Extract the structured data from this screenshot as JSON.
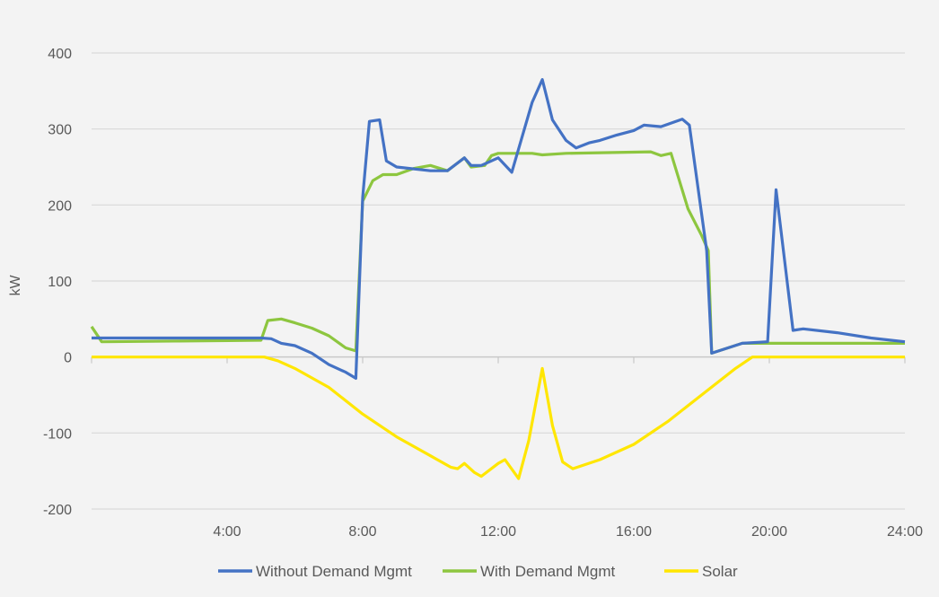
{
  "chart_data": {
    "type": "line",
    "title": "",
    "xlabel": "",
    "ylabel": "kW",
    "xlim": [
      0,
      24
    ],
    "ylim": [
      -200,
      400
    ],
    "grid": true,
    "legend": "bottom",
    "x_ticks": [
      {
        "value": 4,
        "label": "4:00"
      },
      {
        "value": 8,
        "label": "8:00"
      },
      {
        "value": 12,
        "label": "12:00"
      },
      {
        "value": 16,
        "label": "16:00"
      },
      {
        "value": 20,
        "label": "20:00"
      },
      {
        "value": 24,
        "label": "24:00"
      }
    ],
    "y_ticks": [
      {
        "value": 400,
        "label": "400"
      },
      {
        "value": 300,
        "label": "300"
      },
      {
        "value": 200,
        "label": "200"
      },
      {
        "value": 100,
        "label": "100"
      },
      {
        "value": 0,
        "label": "0"
      },
      {
        "value": -100,
        "label": "-100"
      },
      {
        "value": -200,
        "label": "-200"
      }
    ],
    "series": [
      {
        "name": "Without Demand Mgmt",
        "color": "#4472c4",
        "points": [
          [
            0,
            25
          ],
          [
            1,
            25
          ],
          [
            2,
            25
          ],
          [
            3,
            25
          ],
          [
            4,
            25
          ],
          [
            5,
            25
          ],
          [
            5.3,
            24
          ],
          [
            5.6,
            18
          ],
          [
            6,
            15
          ],
          [
            6.5,
            5
          ],
          [
            7,
            -10
          ],
          [
            7.5,
            -20
          ],
          [
            7.8,
            -28
          ],
          [
            8.0,
            210
          ],
          [
            8.2,
            310
          ],
          [
            8.5,
            312
          ],
          [
            8.7,
            258
          ],
          [
            9,
            250
          ],
          [
            10,
            245
          ],
          [
            10.5,
            245
          ],
          [
            11,
            262
          ],
          [
            11.2,
            252
          ],
          [
            11.5,
            252
          ],
          [
            12,
            262
          ],
          [
            12.4,
            243
          ],
          [
            13,
            335
          ],
          [
            13.3,
            365
          ],
          [
            13.6,
            312
          ],
          [
            14,
            285
          ],
          [
            14.3,
            275
          ],
          [
            14.7,
            282
          ],
          [
            15,
            285
          ],
          [
            15.5,
            292
          ],
          [
            16,
            298
          ],
          [
            16.3,
            305
          ],
          [
            16.8,
            303
          ],
          [
            17.43,
            313
          ],
          [
            17.64,
            305
          ],
          [
            18.15,
            140
          ],
          [
            18.3,
            5
          ],
          [
            19.2,
            18
          ],
          [
            19.95,
            20
          ],
          [
            20.2,
            220
          ],
          [
            20.7,
            35
          ],
          [
            21,
            37
          ],
          [
            22,
            32
          ],
          [
            23,
            25
          ],
          [
            24,
            20
          ]
        ]
      },
      {
        "name": "With Demand Mgmt",
        "color": "#8dc63f",
        "points": [
          [
            0,
            40
          ],
          [
            0.3,
            20
          ],
          [
            5,
            22
          ],
          [
            5.2,
            48
          ],
          [
            5.6,
            50
          ],
          [
            6,
            45
          ],
          [
            6.5,
            38
          ],
          [
            7,
            28
          ],
          [
            7.5,
            12
          ],
          [
            7.8,
            8
          ],
          [
            8.0,
            205
          ],
          [
            8.3,
            232
          ],
          [
            8.6,
            240
          ],
          [
            9,
            240
          ],
          [
            9.5,
            248
          ],
          [
            10,
            252
          ],
          [
            10.5,
            245
          ],
          [
            11,
            262
          ],
          [
            11.2,
            250
          ],
          [
            11.6,
            252
          ],
          [
            11.8,
            265
          ],
          [
            12,
            268
          ],
          [
            13,
            268
          ],
          [
            13.3,
            266
          ],
          [
            14,
            268
          ],
          [
            16.5,
            270
          ],
          [
            16.8,
            265
          ],
          [
            17.1,
            268
          ],
          [
            17.6,
            195
          ],
          [
            18,
            160
          ],
          [
            18.2,
            140
          ],
          [
            18.3,
            5
          ],
          [
            19.2,
            18
          ],
          [
            24,
            18
          ]
        ]
      },
      {
        "name": "Solar",
        "color": "#ffe600",
        "points": [
          [
            0,
            0
          ],
          [
            5.1,
            0
          ],
          [
            5.5,
            -5
          ],
          [
            6,
            -15
          ],
          [
            7,
            -40
          ],
          [
            8,
            -75
          ],
          [
            9,
            -105
          ],
          [
            10,
            -130
          ],
          [
            10.6,
            -145
          ],
          [
            10.8,
            -147
          ],
          [
            11,
            -140
          ],
          [
            11.3,
            -152
          ],
          [
            11.5,
            -157
          ],
          [
            12,
            -140
          ],
          [
            12.2,
            -135
          ],
          [
            12.6,
            -160
          ],
          [
            12.9,
            -110
          ],
          [
            13.3,
            -15
          ],
          [
            13.6,
            -90
          ],
          [
            13.9,
            -138
          ],
          [
            14.2,
            -147
          ],
          [
            15,
            -135
          ],
          [
            16,
            -115
          ],
          [
            17,
            -85
          ],
          [
            18,
            -50
          ],
          [
            19,
            -15
          ],
          [
            19.5,
            0
          ],
          [
            24,
            0
          ]
        ]
      }
    ]
  }
}
